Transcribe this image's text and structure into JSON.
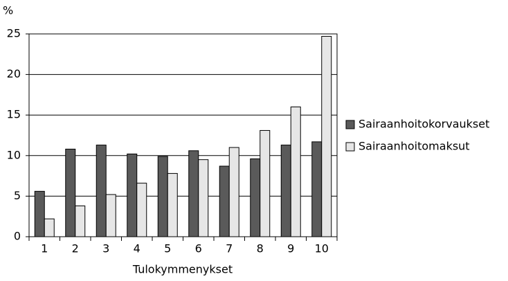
{
  "chart_data": {
    "type": "bar",
    "y_unit_label": "%",
    "x_label": "Tulokymmenykset",
    "categories": [
      "1",
      "2",
      "3",
      "4",
      "5",
      "6",
      "7",
      "8",
      "9",
      "10"
    ],
    "series": [
      {
        "name": "Sairaanhoitokorvaukset",
        "color": "#5a5a5a",
        "values": [
          5.6,
          10.8,
          11.3,
          10.2,
          9.9,
          10.6,
          8.7,
          9.6,
          11.3,
          11.7
        ]
      },
      {
        "name": "Sairaanhoitomaksut",
        "color": "#e6e6e6",
        "values": [
          2.2,
          3.8,
          5.2,
          6.6,
          7.8,
          9.5,
          11.0,
          13.1,
          16.0,
          24.7
        ]
      }
    ],
    "ylim": [
      0,
      25
    ],
    "yticks": [
      0,
      5,
      10,
      15,
      20,
      25
    ],
    "grid": true,
    "legend": "right"
  }
}
